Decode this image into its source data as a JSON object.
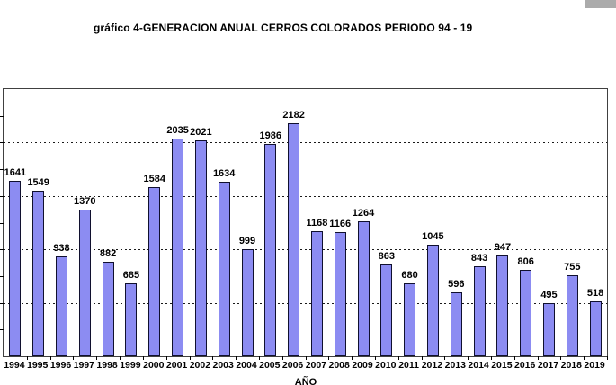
{
  "title": "gráfico 4-GENERACION ANUAL CERROS COLORADOS PERIODO 94 - 19",
  "window": {
    "scrollbar_fragment_color": "#ababab"
  },
  "chart_data": {
    "type": "bar",
    "title": "gráfico 4-GENERACION ANUAL CERROS COLORADOS PERIODO 94 - 19",
    "xlabel": "AÑO",
    "ylabel": "",
    "categories": [
      "1994",
      "1995",
      "1996",
      "1997",
      "1998",
      "1999",
      "2000",
      "2001",
      "2002",
      "2003",
      "2004",
      "2005",
      "2006",
      "2007",
      "2008",
      "2009",
      "2010",
      "2011",
      "2012",
      "2013",
      "2014",
      "2015",
      "2016",
      "2017",
      "2018",
      "2019"
    ],
    "values": [
      1641,
      1549,
      938,
      1370,
      882,
      685,
      1584,
      2035,
      2021,
      1634,
      999,
      1986,
      2182,
      1168,
      1166,
      1264,
      863,
      680,
      1045,
      596,
      843,
      947,
      806,
      495,
      755,
      518
    ],
    "data_labels": true,
    "ylim": [
      0,
      2500
    ],
    "ytick_step": 250,
    "gridline_values": [
      500,
      1000,
      1500,
      2000
    ],
    "grid_style": "dashed-horizontal",
    "y_axis_labels_visible": false,
    "legend": "none",
    "colors": {
      "bar_fill": "#8c8cf2",
      "bar_border": "#10102e",
      "axis": "#404040",
      "gridline": "#1a1a1a",
      "text": "#000000"
    }
  }
}
